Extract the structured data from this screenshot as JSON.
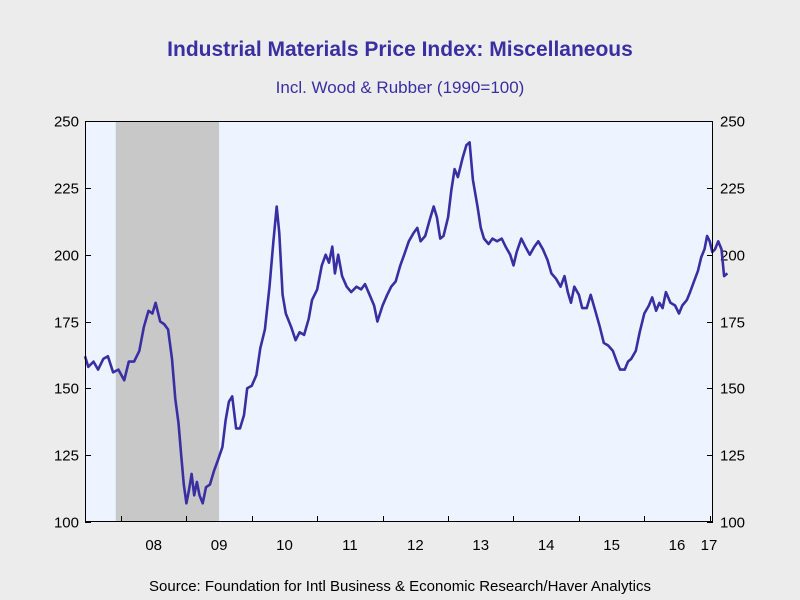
{
  "title": "Industrial Materials Price Index: Miscellaneous",
  "subtitle": "Incl. Wood & Rubber (1990=100)",
  "source": "Source:  Foundation for Intl Business & Economic Research/Haver Analytics",
  "colors": {
    "line": "#3a2fa2",
    "plot_background": "#eef4ff",
    "recession_shade": "#c8c8c8",
    "page_background": "#ececec"
  },
  "chart_data": {
    "type": "line",
    "title": "Industrial Materials Price Index: Miscellaneous",
    "subtitle": "Incl. Wood & Rubber (1990=100)",
    "xlabel": "",
    "ylabel": "",
    "ylim": [
      100,
      250
    ],
    "yticks": [
      100,
      125,
      150,
      175,
      200,
      225,
      250
    ],
    "x_tick_labels": [
      "08",
      "09",
      "10",
      "11",
      "12",
      "13",
      "14",
      "15",
      "16",
      "17"
    ],
    "xlim": [
      2007.45,
      2017.05
    ],
    "grid": false,
    "recession_shading": [
      {
        "start": 2007.92,
        "end": 2009.5
      }
    ],
    "series": [
      {
        "values": [
          [
            2007.45,
            162
          ],
          [
            2007.5,
            158
          ],
          [
            2007.58,
            160
          ],
          [
            2007.65,
            157
          ],
          [
            2007.73,
            161
          ],
          [
            2007.8,
            162
          ],
          [
            2007.88,
            156
          ],
          [
            2007.96,
            157
          ],
          [
            2008.05,
            153
          ],
          [
            2008.12,
            160
          ],
          [
            2008.2,
            160
          ],
          [
            2008.28,
            164
          ],
          [
            2008.35,
            173
          ],
          [
            2008.42,
            179
          ],
          [
            2008.48,
            178
          ],
          [
            2008.53,
            182
          ],
          [
            2008.6,
            175
          ],
          [
            2008.66,
            174
          ],
          [
            2008.72,
            172
          ],
          [
            2008.78,
            161
          ],
          [
            2008.83,
            146
          ],
          [
            2008.88,
            137
          ],
          [
            2008.92,
            125
          ],
          [
            2008.96,
            114
          ],
          [
            2009.0,
            107
          ],
          [
            2009.04,
            112
          ],
          [
            2009.08,
            118
          ],
          [
            2009.12,
            110
          ],
          [
            2009.16,
            115
          ],
          [
            2009.2,
            110
          ],
          [
            2009.25,
            107
          ],
          [
            2009.3,
            113
          ],
          [
            2009.36,
            114
          ],
          [
            2009.42,
            119
          ],
          [
            2009.48,
            123
          ],
          [
            2009.55,
            128
          ],
          [
            2009.6,
            138
          ],
          [
            2009.65,
            145
          ],
          [
            2009.7,
            147
          ],
          [
            2009.76,
            135
          ],
          [
            2009.82,
            135
          ],
          [
            2009.88,
            140
          ],
          [
            2009.93,
            150
          ],
          [
            2010.0,
            151
          ],
          [
            2010.07,
            155
          ],
          [
            2010.13,
            165
          ],
          [
            2010.2,
            172
          ],
          [
            2010.27,
            188
          ],
          [
            2010.33,
            205
          ],
          [
            2010.38,
            218
          ],
          [
            2010.42,
            208
          ],
          [
            2010.47,
            185
          ],
          [
            2010.52,
            178
          ],
          [
            2010.6,
            173
          ],
          [
            2010.67,
            168
          ],
          [
            2010.73,
            171
          ],
          [
            2010.8,
            170
          ],
          [
            2010.87,
            176
          ],
          [
            2010.92,
            183
          ],
          [
            2011.0,
            187
          ],
          [
            2011.07,
            196
          ],
          [
            2011.13,
            200
          ],
          [
            2011.18,
            197
          ],
          [
            2011.23,
            203
          ],
          [
            2011.27,
            193
          ],
          [
            2011.32,
            200
          ],
          [
            2011.38,
            192
          ],
          [
            2011.45,
            188
          ],
          [
            2011.52,
            186
          ],
          [
            2011.6,
            188
          ],
          [
            2011.67,
            187
          ],
          [
            2011.73,
            189
          ],
          [
            2011.8,
            185
          ],
          [
            2011.87,
            181
          ],
          [
            2011.92,
            175
          ],
          [
            2012.0,
            181
          ],
          [
            2012.07,
            185
          ],
          [
            2012.13,
            188
          ],
          [
            2012.2,
            190
          ],
          [
            2012.27,
            196
          ],
          [
            2012.33,
            200
          ],
          [
            2012.4,
            205
          ],
          [
            2012.47,
            208
          ],
          [
            2012.53,
            210
          ],
          [
            2012.58,
            205
          ],
          [
            2012.65,
            207
          ],
          [
            2012.72,
            213
          ],
          [
            2012.78,
            218
          ],
          [
            2012.83,
            214
          ],
          [
            2012.88,
            206
          ],
          [
            2012.93,
            207
          ],
          [
            2013.0,
            214
          ],
          [
            2013.05,
            224
          ],
          [
            2013.1,
            232
          ],
          [
            2013.15,
            229
          ],
          [
            2013.22,
            236
          ],
          [
            2013.28,
            241
          ],
          [
            2013.33,
            242
          ],
          [
            2013.38,
            228
          ],
          [
            2013.45,
            218
          ],
          [
            2013.5,
            210
          ],
          [
            2013.55,
            206
          ],
          [
            2013.62,
            204
          ],
          [
            2013.68,
            206
          ],
          [
            2013.75,
            205
          ],
          [
            2013.82,
            206
          ],
          [
            2013.88,
            203
          ],
          [
            2013.95,
            200
          ],
          [
            2014.0,
            196
          ],
          [
            2014.05,
            201
          ],
          [
            2014.12,
            206
          ],
          [
            2014.18,
            203
          ],
          [
            2014.25,
            200
          ],
          [
            2014.32,
            203
          ],
          [
            2014.38,
            205
          ],
          [
            2014.45,
            202
          ],
          [
            2014.52,
            198
          ],
          [
            2014.58,
            193
          ],
          [
            2014.65,
            191
          ],
          [
            2014.72,
            188
          ],
          [
            2014.78,
            192
          ],
          [
            2014.83,
            186
          ],
          [
            2014.88,
            182
          ],
          [
            2014.93,
            188
          ],
          [
            2015.0,
            185
          ],
          [
            2015.05,
            180
          ],
          [
            2015.12,
            180
          ],
          [
            2015.18,
            185
          ],
          [
            2015.25,
            179
          ],
          [
            2015.32,
            173
          ],
          [
            2015.38,
            167
          ],
          [
            2015.45,
            166
          ],
          [
            2015.52,
            164
          ],
          [
            2015.58,
            160
          ],
          [
            2015.63,
            157
          ],
          [
            2015.7,
            157
          ],
          [
            2015.75,
            160
          ],
          [
            2015.8,
            161
          ],
          [
            2015.87,
            164
          ],
          [
            2015.93,
            171
          ],
          [
            2016.0,
            178
          ],
          [
            2016.07,
            181
          ],
          [
            2016.12,
            184
          ],
          [
            2016.18,
            179
          ],
          [
            2016.23,
            182
          ],
          [
            2016.28,
            180
          ],
          [
            2016.33,
            186
          ],
          [
            2016.4,
            182
          ],
          [
            2016.47,
            181
          ],
          [
            2016.53,
            178
          ],
          [
            2016.58,
            181
          ],
          [
            2016.65,
            183
          ],
          [
            2016.7,
            186
          ],
          [
            2016.76,
            190
          ],
          [
            2016.82,
            194
          ],
          [
            2016.87,
            199
          ],
          [
            2016.92,
            202
          ],
          [
            2016.96,
            207
          ],
          [
            2017.0,
            205
          ],
          [
            2017.04,
            201
          ],
          [
            2017.08,
            202
          ],
          [
            2017.13,
            205
          ],
          [
            2017.18,
            202
          ],
          [
            2017.22,
            192
          ],
          [
            2017.27,
            193
          ]
        ]
      }
    ]
  }
}
